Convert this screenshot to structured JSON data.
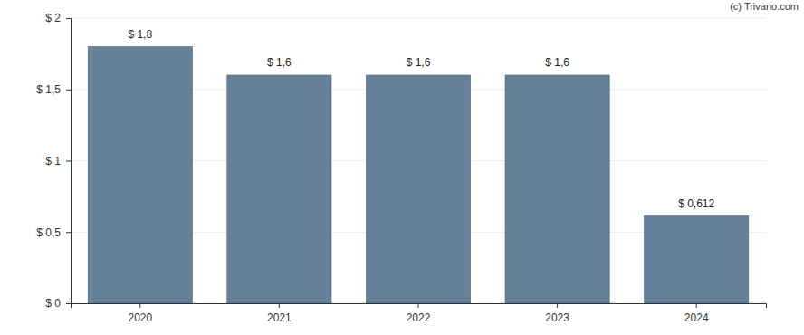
{
  "chart_data": {
    "type": "bar",
    "annotations": [
      "(c) Trivano.com"
    ],
    "categories": [
      "2020",
      "2021",
      "2022",
      "2023",
      "2024"
    ],
    "values": [
      1.8,
      1.6,
      1.6,
      1.6,
      0.612
    ],
    "value_labels": [
      "$ 1,8",
      "$ 1,6",
      "$ 1,6",
      "$ 1,6",
      "$ 0,612"
    ],
    "data_labels": true,
    "color": "#65829a",
    "ylim": [
      0,
      2
    ],
    "yticks": [
      {
        "value": 0,
        "label": "$ 0"
      },
      {
        "value": 0.5,
        "label": "$ 0,5"
      },
      {
        "value": 1,
        "label": "$ 1"
      },
      {
        "value": 1.5,
        "label": "$ 1,5"
      },
      {
        "value": 2,
        "label": "$ 2"
      }
    ],
    "grid": true
  }
}
